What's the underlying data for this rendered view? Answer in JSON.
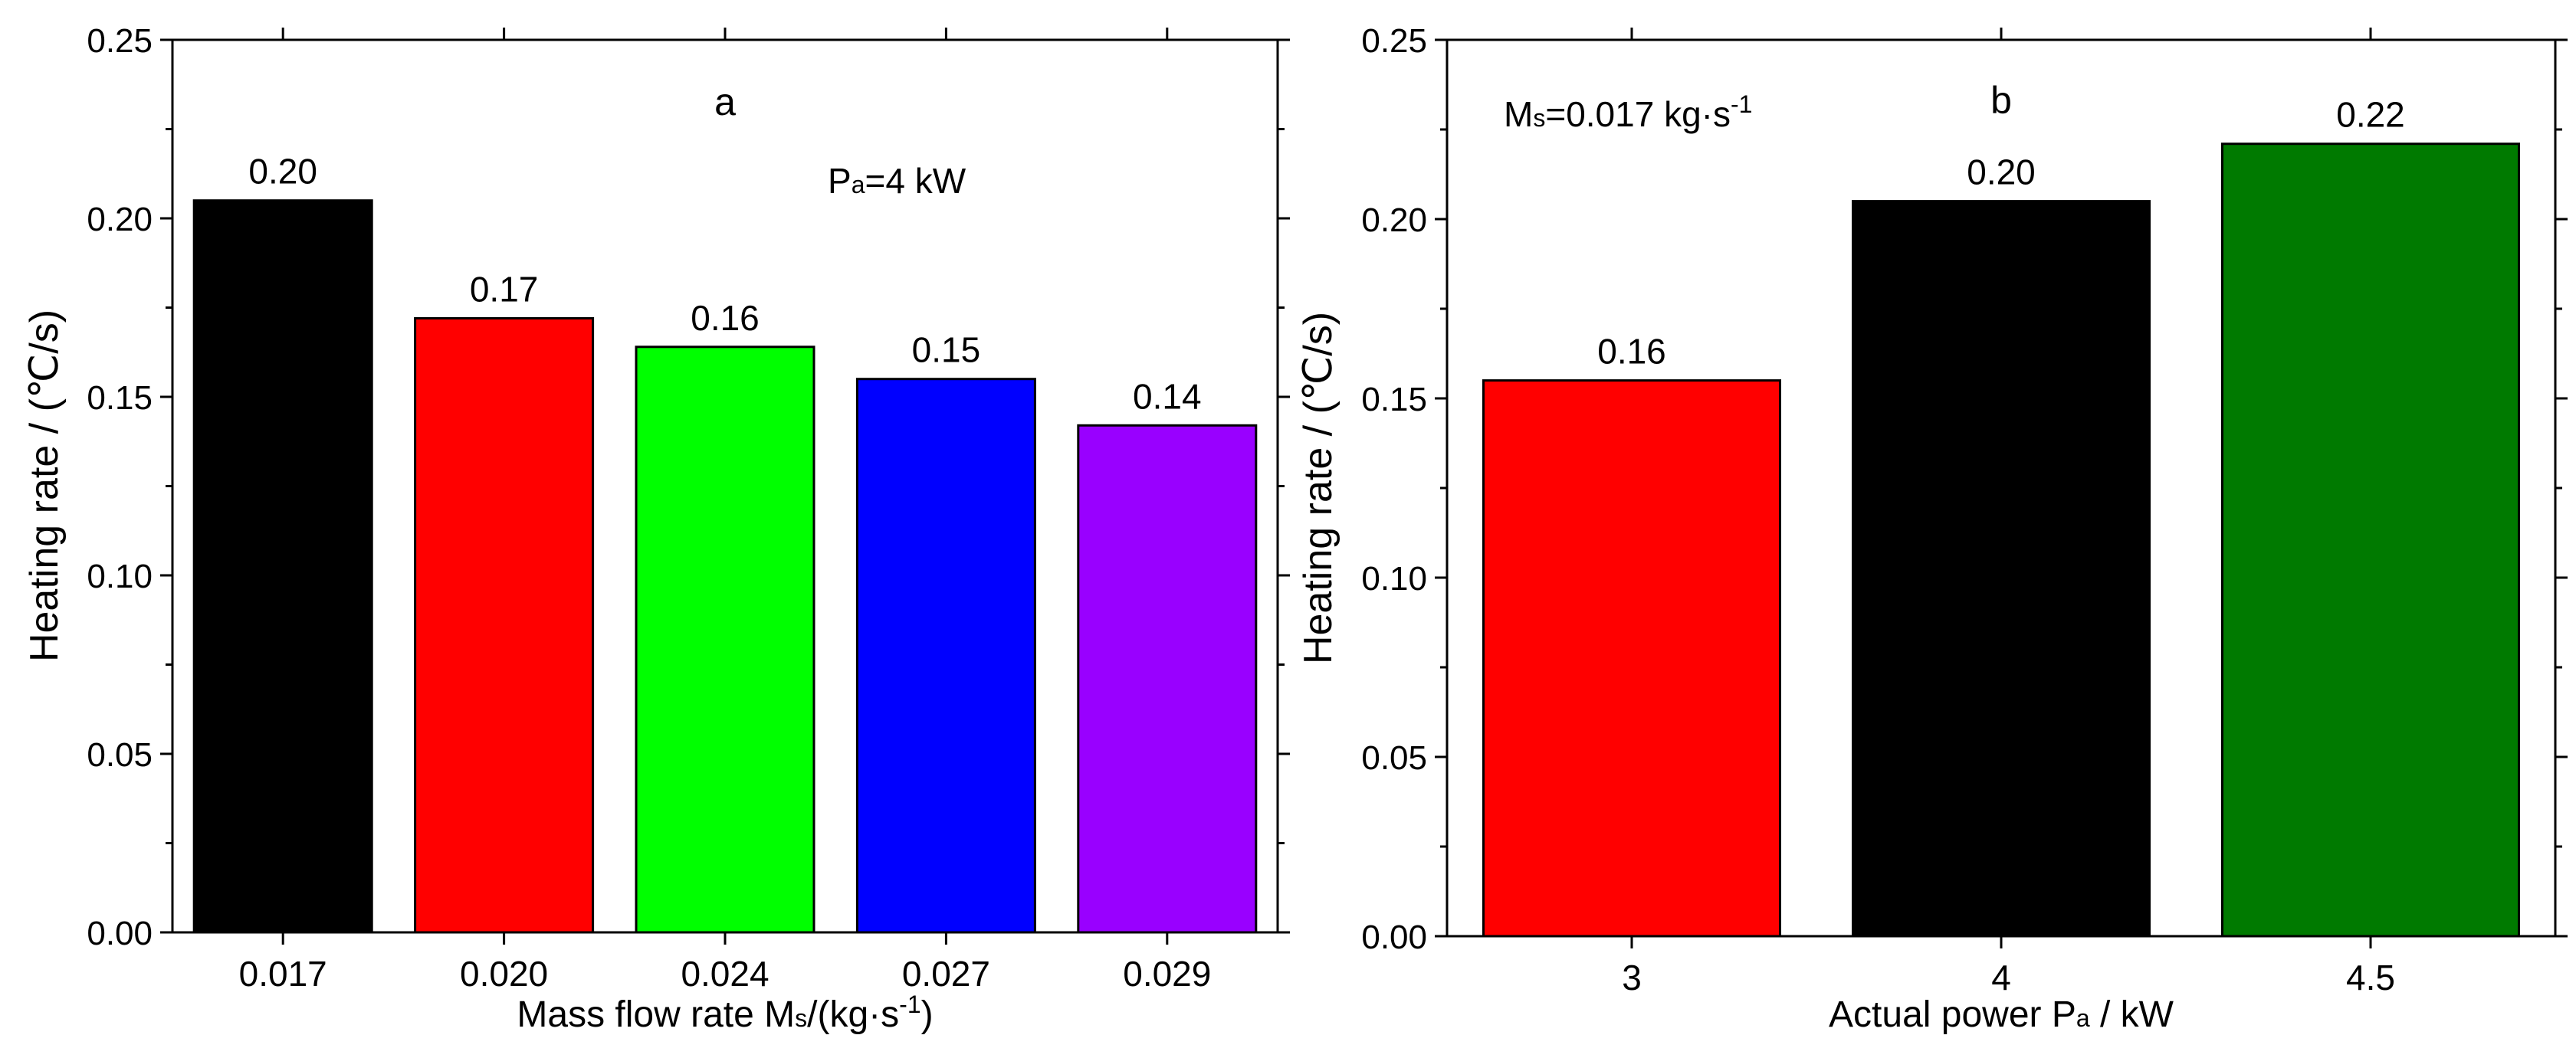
{
  "chart_data": [
    {
      "type": "bar",
      "panel_label": "a",
      "annotation": {
        "main": "P",
        "sub": "a",
        "rest": "=4 kW"
      },
      "categories": [
        "0.017",
        "0.020",
        "0.024",
        "0.027",
        "0.029"
      ],
      "values": [
        0.205,
        0.172,
        0.164,
        0.155,
        0.142
      ],
      "data_labels": [
        "0.20",
        "0.17",
        "0.16",
        "0.15",
        "0.14"
      ],
      "colors": [
        "#000000",
        "#ff0000",
        "#00ff00",
        "#0000ff",
        "#9900ff"
      ],
      "xlabel": {
        "main": "Mass flow rate M",
        "sub": "s",
        "rest": "/(kg·s",
        "sup": "-1",
        "end": ")"
      },
      "ylabel": "Heating rate / (℃/s)",
      "ylim": [
        0,
        0.25
      ],
      "yticks": [
        "0.00",
        "0.05",
        "0.10",
        "0.15",
        "0.20",
        "0.25"
      ],
      "ytick_values": [
        0,
        0.05,
        0.1,
        0.15,
        0.2,
        0.25
      ]
    },
    {
      "type": "bar",
      "panel_label": "b",
      "annotation": {
        "main": "M",
        "sub": "s",
        "rest": "=0.017 kg·s",
        "sup": "-1"
      },
      "categories": [
        "3",
        "4",
        "4.5"
      ],
      "values": [
        0.155,
        0.205,
        0.221
      ],
      "data_labels": [
        "0.16",
        "0.20",
        "0.22"
      ],
      "colors": [
        "#ff0000",
        "#000000",
        "#007a00"
      ],
      "xlabel": {
        "main": "Actual power P",
        "sub": "a",
        "rest": " / kW"
      },
      "ylabel": "Heating rate / (℃/s)",
      "ylim": [
        0,
        0.25
      ],
      "yticks": [
        "0.00",
        "0.05",
        "0.10",
        "0.15",
        "0.20",
        "0.25"
      ],
      "ytick_values": [
        0,
        0.05,
        0.1,
        0.15,
        0.2,
        0.25
      ]
    }
  ]
}
